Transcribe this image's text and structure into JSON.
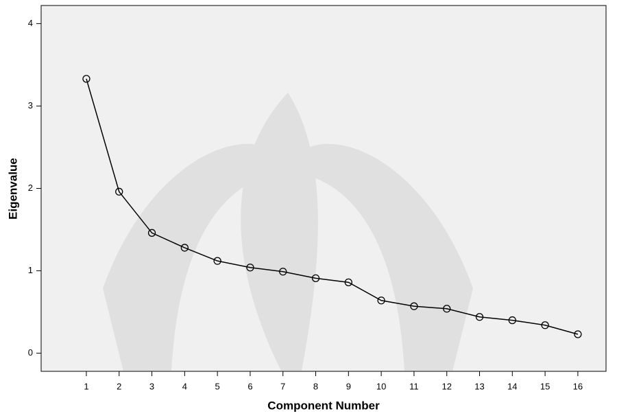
{
  "chart_data": {
    "type": "line",
    "xlabel": "Component Number",
    "ylabel": "Eigenvalue",
    "x": [
      1,
      2,
      3,
      4,
      5,
      6,
      7,
      8,
      9,
      10,
      11,
      12,
      13,
      14,
      15,
      16
    ],
    "values": [
      3.33,
      1.96,
      1.46,
      1.28,
      1.12,
      1.04,
      0.99,
      0.91,
      0.86,
      0.64,
      0.57,
      0.54,
      0.44,
      0.4,
      0.34,
      0.23
    ],
    "color": "#000000",
    "marker": "circle",
    "xlim": [
      -0.38,
      16.86
    ],
    "ylim": [
      -0.22,
      4.22
    ],
    "xticks": [
      1,
      2,
      3,
      4,
      5,
      6,
      7,
      8,
      9,
      10,
      11,
      12,
      13,
      14,
      15,
      16
    ],
    "yticks": [
      0,
      1,
      2,
      3,
      4
    ]
  }
}
